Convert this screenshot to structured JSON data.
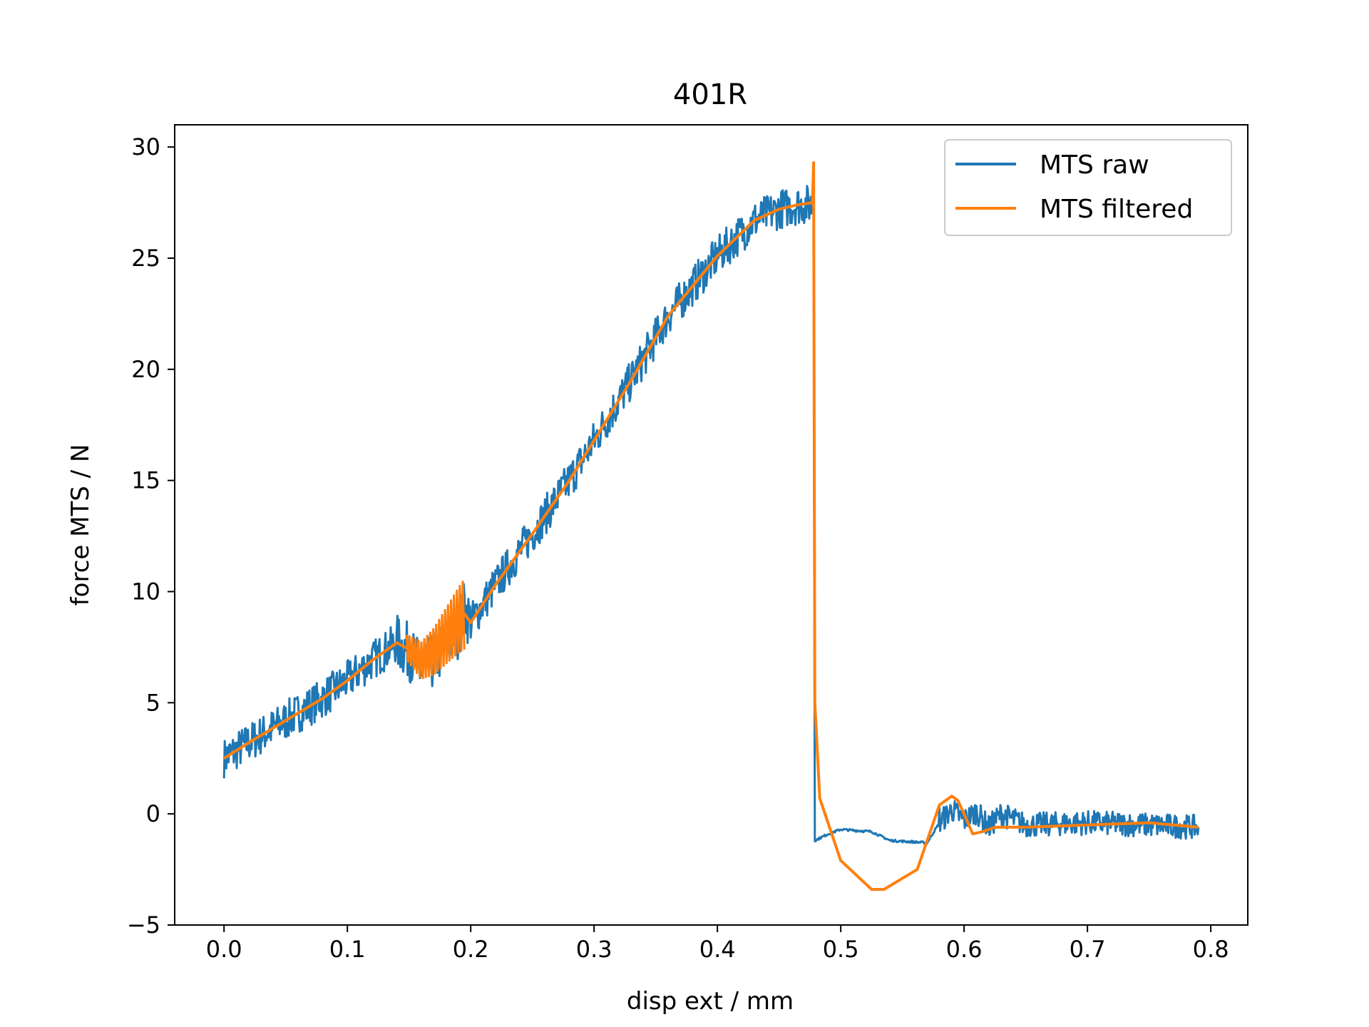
{
  "chart_data": {
    "type": "line",
    "title": "401R",
    "xlabel": "disp ext / mm",
    "ylabel": "force MTS / N",
    "xlim": [
      -0.04,
      0.83
    ],
    "ylim": [
      -5,
      31
    ],
    "xticks": [
      0.0,
      0.1,
      0.2,
      0.3,
      0.4,
      0.5,
      0.6,
      0.7,
      0.8
    ],
    "xtick_labels": [
      "0.0",
      "0.1",
      "0.2",
      "0.3",
      "0.4",
      "0.5",
      "0.6",
      "0.7",
      "0.8"
    ],
    "yticks": [
      -5,
      0,
      5,
      10,
      15,
      20,
      25,
      30
    ],
    "ytick_labels": [
      "−5",
      "0",
      "5",
      "10",
      "15",
      "20",
      "25",
      "30"
    ],
    "grid": false,
    "legend_position": "top-right",
    "series": [
      {
        "name": "MTS raw",
        "color": "#1f77b4",
        "style": "noisy-band",
        "x": [
          0.0,
          0.02,
          0.05,
          0.08,
          0.1,
          0.12,
          0.14,
          0.15,
          0.16,
          0.17,
          0.18,
          0.19,
          0.195,
          0.2,
          0.22,
          0.25,
          0.28,
          0.3,
          0.33,
          0.36,
          0.4,
          0.43,
          0.45,
          0.465,
          0.478,
          0.479,
          0.49,
          0.5,
          0.525,
          0.54,
          0.57,
          0.58,
          0.59,
          0.6,
          0.61,
          0.62,
          0.63,
          0.65,
          0.7,
          0.75,
          0.79
        ],
        "y": [
          2.5,
          3.2,
          4.2,
          5.2,
          6.0,
          6.9,
          7.7,
          7.3,
          6.4,
          6.9,
          7.6,
          8.3,
          9.3,
          8.6,
          10.3,
          12.6,
          15.0,
          16.8,
          19.5,
          22.4,
          25.1,
          26.7,
          27.2,
          27.4,
          27.4,
          -1.2,
          -0.9,
          -0.7,
          -0.8,
          -1.2,
          -1.3,
          -0.4,
          0.2,
          -0.3,
          0.1,
          -0.6,
          0.0,
          -0.5,
          -0.4,
          -0.5,
          -0.6
        ]
      },
      {
        "name": "MTS filtered",
        "color": "#ff7f0e",
        "style": "line",
        "x": [
          0.0,
          0.02,
          0.05,
          0.08,
          0.1,
          0.12,
          0.14,
          0.15,
          0.16,
          0.17,
          0.18,
          0.19,
          0.195,
          0.2,
          0.22,
          0.25,
          0.28,
          0.3,
          0.33,
          0.36,
          0.4,
          0.43,
          0.45,
          0.465,
          0.477,
          0.478,
          0.479,
          0.483,
          0.5,
          0.525,
          0.535,
          0.562,
          0.58,
          0.59,
          0.595,
          0.6,
          0.607,
          0.615,
          0.625,
          0.65,
          0.7,
          0.75,
          0.79
        ],
        "y": [
          2.5,
          3.2,
          4.2,
          5.2,
          6.0,
          6.9,
          7.7,
          7.4,
          6.9,
          7.3,
          8.0,
          8.7,
          9.0,
          8.6,
          10.3,
          12.6,
          15.0,
          16.8,
          19.5,
          22.4,
          25.1,
          26.7,
          27.2,
          27.4,
          27.5,
          29.3,
          5.0,
          0.7,
          -2.1,
          -3.4,
          -3.4,
          -2.5,
          0.4,
          0.8,
          0.6,
          0.0,
          -0.9,
          -0.8,
          -0.6,
          -0.6,
          -0.5,
          -0.4,
          -0.6
        ]
      }
    ]
  }
}
